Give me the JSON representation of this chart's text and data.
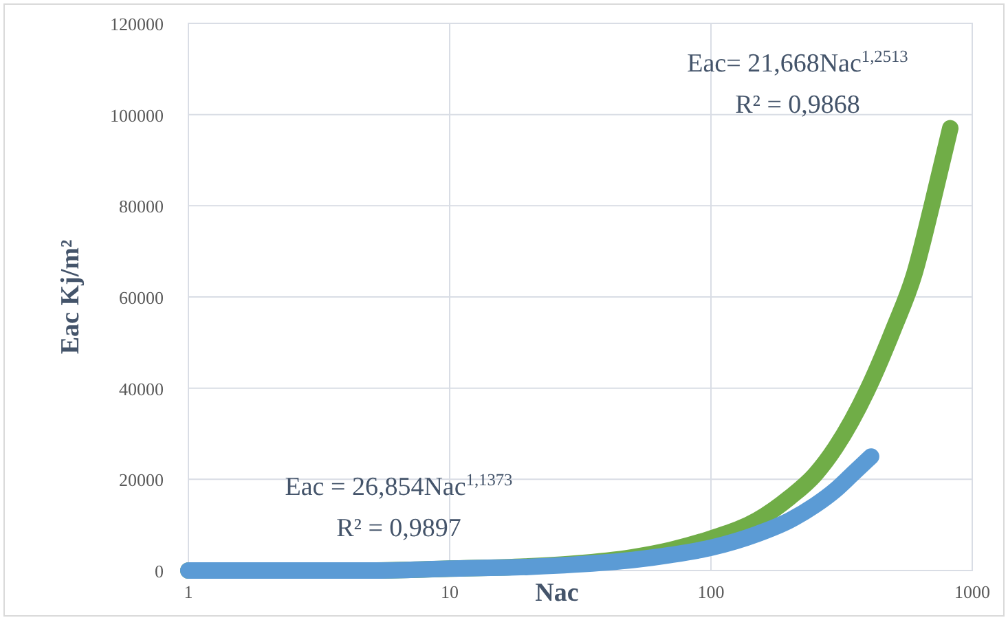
{
  "chart_data": {
    "type": "line",
    "xlabel": "Nac",
    "ylabel": "Eac Kj/m²",
    "log": "x",
    "xlim": [
      1,
      1000
    ],
    "xticks": [
      1,
      10,
      100,
      1000
    ],
    "ylim": [
      0,
      120000
    ],
    "yticks": [
      0,
      20000,
      40000,
      60000,
      80000,
      100000,
      120000
    ],
    "grid": true,
    "line_style": "solid",
    "series": [
      {
        "color": "#70ad47",
        "x": [
          1,
          5,
          10,
          20,
          30,
          50,
          70,
          100,
          150,
          200,
          250,
          300,
          400,
          500,
          600,
          700,
          824
        ],
        "values": [
          0,
          0,
          400,
          900,
          1500,
          2900,
          4500,
          7000,
          11000,
          16000,
          21000,
          27000,
          40000,
          53000,
          65000,
          80000,
          97000
        ]
      },
      {
        "color": "#5b9bd5",
        "x": [
          1,
          5,
          10,
          20,
          30,
          50,
          70,
          100,
          150,
          200,
          250,
          300,
          350,
          410
        ],
        "values": [
          0,
          0,
          400,
          800,
          1300,
          2300,
          3400,
          5000,
          8000,
          11000,
          14300,
          17700,
          21300,
          25000
        ]
      }
    ],
    "annotations": [
      "Eac= 21,668Nac$^{1,2513}$\nR² = 0,9868",
      "Eac = 26,854Nac$^{1,1373}$\nR² = 0,9897"
    ]
  }
}
